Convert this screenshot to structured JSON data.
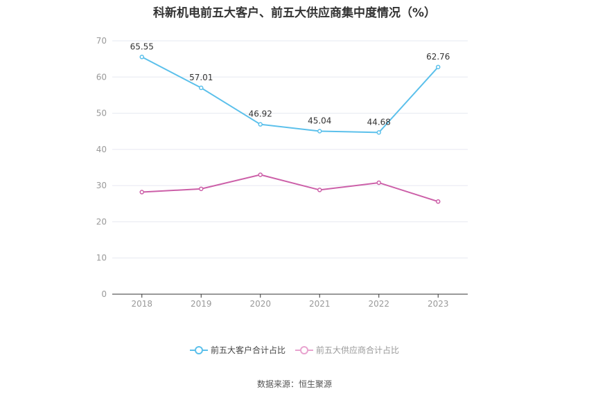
{
  "title": "科新机电前五大客户、前五大供应商集中度情况（%）",
  "source": "数据来源：恒生聚源",
  "colors": {
    "customers": "#5bc0eb",
    "suppliers": "#cc5fa8",
    "grid": "#e6e8f0",
    "axis": "#333333"
  },
  "chart_data": {
    "type": "line",
    "title": "科新机电前五大客户、前五大供应商集中度情况（%）",
    "categories": [
      "2018",
      "2019",
      "2020",
      "2021",
      "2022",
      "2023"
    ],
    "yticks": [
      "0",
      "10",
      "20",
      "30",
      "40",
      "50",
      "60",
      "70"
    ],
    "ylim": [
      0,
      70
    ],
    "grid": true,
    "legend_position": "bottom",
    "series": [
      {
        "name": "前五大客户合计占比",
        "values": [
          65.55,
          57.01,
          46.92,
          45.04,
          44.68,
          62.76
        ],
        "labels": [
          "65.55",
          "57.01",
          "46.92",
          "45.04",
          "44.68",
          "62.76"
        ]
      },
      {
        "name": "前五大供应商合计占比",
        "values": [
          28.2,
          29.1,
          33.0,
          28.8,
          30.8,
          25.6
        ]
      }
    ]
  }
}
